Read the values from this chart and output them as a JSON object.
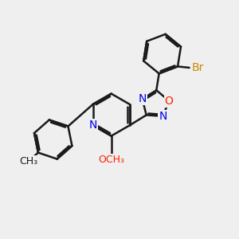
{
  "bg_color": "#efefef",
  "bond_color": "#1a1a1a",
  "bond_width": 1.8,
  "N_color": "#0000ee",
  "O_color": "#ff2200",
  "Br_color": "#cc8800",
  "font_size_atoms": 10,
  "fig_width": 3.0,
  "fig_height": 3.0,
  "dpi": 100,
  "xlim": [
    0,
    10
  ],
  "ylim": [
    0,
    10
  ]
}
